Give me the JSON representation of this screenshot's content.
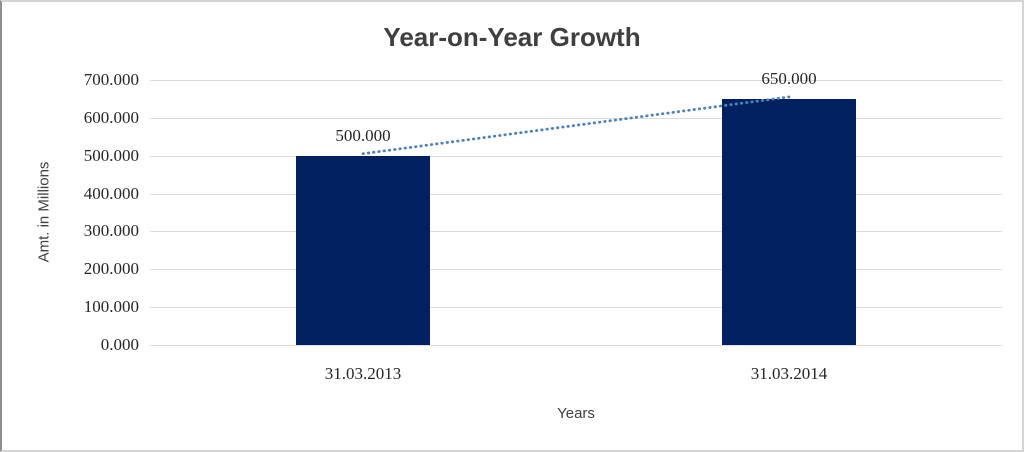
{
  "window": {
    "background": "#ffffff",
    "border_color": "#d4d4d4"
  },
  "chart_data": {
    "type": "bar",
    "title": "Year-on-Year Growth",
    "xlabel": "Years",
    "ylabel": "Amt. in Millions",
    "categories": [
      "31.03.2013",
      "31.03.2014"
    ],
    "values": [
      500,
      650
    ],
    "value_labels": [
      "500.000",
      "650.000"
    ],
    "ylim": [
      0,
      700
    ],
    "ytick_step": 100,
    "ytick_values": [
      0,
      100,
      200,
      300,
      400,
      500,
      600,
      700
    ],
    "ytick_labels": [
      "0.000",
      "100.000",
      "200.000",
      "300.000",
      "400.000",
      "500.000",
      "600.000",
      "700.000"
    ],
    "grid": true,
    "legend": "none",
    "colors": {
      "bar": "#002060",
      "trendline": "#4f81bd",
      "gridline": "#dcdcdc",
      "title": "#3f3f3f",
      "tick_text": "#262626",
      "axis_title_text": "#404040"
    },
    "trendline": {
      "style": "dotted",
      "color": "#4f81bd",
      "points": [
        {
          "x": "31.03.2013",
          "y": 500
        },
        {
          "x": "31.03.2014",
          "y": 650
        }
      ]
    }
  }
}
